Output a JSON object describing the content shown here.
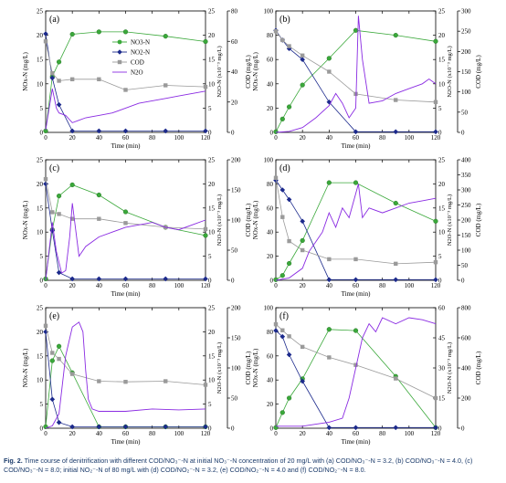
{
  "caption": {
    "label": "Fig. 2.",
    "text": "Time course of denitrification with different COD/NO₃⁻-N at initial NO₃⁻-N concentration of 20 mg/L with (a) COD/NO₃⁻-N = 3.2, (b) COD/NO₃⁻-N = 4.0, (c) COD/NO₃⁻-N = 8.0; initial NO₂⁻-N of 80 mg/L with (d) COD/NO₂⁻-N = 3.2, (e) COD/NO₂⁻-N = 4.0 and (f) COD/NO₂⁻-N = 8.0."
  },
  "colors": {
    "nox_green": "#3aa83a",
    "no2_blue": "#1c2a8c",
    "cod_gray": "#9a9a9a",
    "n2o_purple": "#8a2be2"
  },
  "legend_labels": {
    "a": [
      "NO3-N",
      "NO2-N",
      "COD",
      "N2O"
    ],
    "b": []
  },
  "chart_data": [
    {
      "panel": "(a)",
      "type": "line",
      "xlabel": "Time (min)",
      "ylabel_left": "NOx-N (mg/L)",
      "ylabel_right1": "N2O-N (x10⁻³ mg/L)",
      "ylabel_right2": "COD (mg/L)",
      "xlim": [
        0,
        120
      ],
      "xticks": [
        0,
        20,
        40,
        60,
        80,
        100,
        120
      ],
      "left": {
        "lim": [
          0,
          25
        ],
        "ticks": [
          0,
          5,
          10,
          15,
          20,
          25
        ]
      },
      "right1": {
        "lim": [
          0,
          25
        ],
        "ticks": [
          0,
          5,
          10,
          15,
          20,
          25
        ]
      },
      "right2": {
        "lim": [
          0,
          80
        ],
        "ticks": [
          0,
          20,
          40,
          60,
          80
        ]
      },
      "series": [
        {
          "name": "NO3-N",
          "axis": "left",
          "x": [
            0,
            5,
            10,
            20,
            40,
            60,
            90,
            120
          ],
          "y": [
            0.3,
            11.5,
            14.5,
            20.2,
            20.7,
            20.7,
            19.8,
            18.7
          ]
        },
        {
          "name": "NO2-N",
          "axis": "left",
          "x": [
            0,
            5,
            10,
            20,
            40,
            60,
            90,
            120
          ],
          "y": [
            20.3,
            11.2,
            5.7,
            0.3,
            0.3,
            0.3,
            0.3,
            0.3
          ]
        },
        {
          "name": "COD",
          "axis": "right2",
          "x": [
            0,
            5,
            10,
            20,
            40,
            60,
            90,
            120
          ],
          "y": [
            60,
            39,
            34,
            35,
            35,
            28,
            31,
            30
          ]
        },
        {
          "name": "N2O",
          "axis": "right1",
          "x": [
            0,
            5,
            8,
            10,
            15,
            20,
            25,
            30,
            40,
            50,
            60,
            70,
            80,
            90,
            100,
            110,
            120
          ],
          "y": [
            0.5,
            9,
            5,
            4,
            3.5,
            2,
            2.5,
            3,
            3.5,
            4,
            5,
            6,
            6.5,
            7,
            7.5,
            8,
            8.5
          ]
        }
      ]
    },
    {
      "panel": "(b)",
      "type": "line",
      "xlabel": "Time (min)",
      "ylabel_left": "NOx-N (mg/L)",
      "ylabel_right1": "N2O-N (x10⁻³ mg/L)",
      "ylabel_right2": "COD (mg/L)",
      "xlim": [
        0,
        120
      ],
      "xticks": [
        0,
        20,
        40,
        60,
        80,
        100,
        120
      ],
      "left": {
        "lim": [
          0,
          100
        ],
        "ticks": [
          0,
          20,
          40,
          60,
          80,
          100
        ]
      },
      "right1": {
        "lim": [
          0,
          25
        ],
        "ticks": [
          0,
          5,
          10,
          15,
          20,
          25
        ]
      },
      "right2": {
        "lim": [
          0,
          300
        ],
        "ticks": [
          0,
          50,
          100,
          150,
          200,
          250,
          300
        ]
      },
      "series": [
        {
          "name": "NO3-N",
          "axis": "left",
          "x": [
            0,
            5,
            10,
            20,
            40,
            60,
            90,
            120
          ],
          "y": [
            0.5,
            11,
            21,
            39,
            61,
            84,
            80,
            75
          ]
        },
        {
          "name": "NO2-N",
          "axis": "left",
          "x": [
            0,
            5,
            10,
            20,
            40,
            60,
            90,
            120
          ],
          "y": [
            84,
            76,
            69,
            60,
            25,
            0.5,
            0.5,
            0.5
          ]
        },
        {
          "name": "COD",
          "axis": "right2",
          "x": [
            0,
            5,
            10,
            20,
            40,
            60,
            90,
            120
          ],
          "y": [
            250,
            228,
            213,
            190,
            150,
            95,
            80,
            75
          ]
        },
        {
          "name": "N2O",
          "axis": "right1",
          "x": [
            0,
            10,
            20,
            30,
            40,
            45,
            50,
            55,
            60,
            62,
            65,
            70,
            80,
            90,
            100,
            110,
            115,
            120
          ],
          "y": [
            0,
            0.2,
            1,
            3,
            5.5,
            8,
            6,
            3,
            5,
            24,
            15,
            6,
            6.5,
            8,
            9,
            10,
            11,
            10
          ]
        }
      ]
    },
    {
      "panel": "(c)",
      "type": "line",
      "xlabel": "Time (min)",
      "ylabel_left": "NOx-N (mg/L)",
      "ylabel_right1": "N2O-N (x10⁻³ mg/L)",
      "ylabel_right2": "COD (mg/L)",
      "xlim": [
        0,
        120
      ],
      "xticks": [
        0,
        20,
        40,
        60,
        80,
        100,
        120
      ],
      "left": {
        "lim": [
          0,
          25
        ],
        "ticks": [
          0,
          5,
          10,
          15,
          20,
          25
        ]
      },
      "right1": {
        "lim": [
          0,
          25
        ],
        "ticks": [
          0,
          5,
          10,
          15,
          20,
          25
        ]
      },
      "right2": {
        "lim": [
          0,
          200
        ],
        "ticks": [
          0,
          50,
          100,
          150,
          200
        ]
      },
      "series": [
        {
          "name": "NO3-N",
          "axis": "left",
          "x": [
            0,
            5,
            10,
            20,
            40,
            60,
            90,
            120
          ],
          "y": [
            0.3,
            10.5,
            17.5,
            19.8,
            17.7,
            14.2,
            11.0,
            9.3
          ]
        },
        {
          "name": "NO2-N",
          "axis": "left",
          "x": [
            0,
            5,
            10,
            20,
            40,
            60,
            90,
            120
          ],
          "y": [
            20,
            10.3,
            1.6,
            0.3,
            0.3,
            0.3,
            0.3,
            0.3
          ]
        },
        {
          "name": "COD",
          "axis": "right2",
          "x": [
            0,
            5,
            10,
            20,
            40,
            60,
            90,
            120
          ],
          "y": [
            168,
            113,
            110,
            102,
            102,
            95,
            88,
            85
          ]
        },
        {
          "name": "N2O",
          "axis": "right1",
          "x": [
            0,
            5,
            8,
            12,
            15,
            18,
            20,
            25,
            30,
            40,
            50,
            60,
            70,
            80,
            90,
            100,
            110,
            120
          ],
          "y": [
            0,
            12,
            6,
            1.5,
            2,
            9,
            16,
            5,
            7,
            9,
            10,
            11,
            11.5,
            12,
            11,
            10.5,
            11.5,
            12.5
          ]
        }
      ]
    },
    {
      "panel": "(d)",
      "type": "line",
      "xlabel": "Time (min)",
      "ylabel_left": "NOx-N (mg/L)",
      "ylabel_right1": "N2O-N (x10⁻³ mg/L)",
      "ylabel_right2": "COD (mg/L)",
      "xlim": [
        0,
        120
      ],
      "xticks": [
        0,
        20,
        40,
        60,
        80,
        100,
        120
      ],
      "left": {
        "lim": [
          0,
          100
        ],
        "ticks": [
          0,
          20,
          40,
          60,
          80,
          100
        ]
      },
      "right1": {
        "lim": [
          0,
          25
        ],
        "ticks": [
          0,
          5,
          10,
          15,
          20,
          25
        ]
      },
      "right2": {
        "lim": [
          0,
          400
        ],
        "ticks": [
          0,
          50,
          100,
          150,
          200,
          250,
          300,
          350,
          400
        ]
      },
      "series": [
        {
          "name": "NO3-N",
          "axis": "left",
          "x": [
            0,
            5,
            10,
            20,
            40,
            60,
            90,
            120
          ],
          "y": [
            0.5,
            4,
            14,
            33,
            81,
            81,
            64,
            49
          ]
        },
        {
          "name": "NO2-N",
          "axis": "left",
          "x": [
            0,
            5,
            10,
            20,
            40,
            60,
            90,
            120
          ],
          "y": [
            83,
            75,
            67,
            49,
            0.5,
            0.5,
            0.5,
            0.5
          ]
        },
        {
          "name": "COD",
          "axis": "right2",
          "x": [
            0,
            5,
            10,
            20,
            40,
            60,
            90,
            120
          ],
          "y": [
            340,
            210,
            130,
            100,
            70,
            70,
            55,
            60
          ]
        },
        {
          "name": "N2O",
          "axis": "right1",
          "x": [
            0,
            10,
            20,
            25,
            30,
            35,
            40,
            45,
            50,
            55,
            60,
            62,
            65,
            70,
            80,
            90,
            100,
            110,
            120
          ],
          "y": [
            0,
            0.5,
            2.5,
            6,
            8,
            10,
            14,
            11,
            15,
            13,
            18,
            20,
            13,
            15,
            14,
            15,
            16,
            16.5,
            17
          ]
        }
      ]
    },
    {
      "panel": "(e)",
      "type": "line",
      "xlabel": "Time (min)",
      "ylabel_left": "NOx-N (mg/L)",
      "ylabel_right1": "N2O-N (x10⁻³ mg/L)",
      "ylabel_right2": "COD (mg/L)",
      "xlim": [
        0,
        120
      ],
      "xticks": [
        0,
        20,
        40,
        60,
        80,
        100,
        120
      ],
      "left": {
        "lim": [
          0,
          25
        ],
        "ticks": [
          0,
          5,
          10,
          15,
          20,
          25
        ]
      },
      "right1": {
        "lim": [
          0,
          25
        ],
        "ticks": [
          0,
          5,
          10,
          15,
          20,
          25
        ]
      },
      "right2": {
        "lim": [
          0,
          200
        ],
        "ticks": [
          0,
          50,
          100,
          150,
          200
        ]
      },
      "series": [
        {
          "name": "NO3-N",
          "axis": "left",
          "x": [
            0,
            5,
            10,
            20,
            40,
            60,
            90,
            120
          ],
          "y": [
            0.3,
            14,
            17,
            11.5,
            0.3,
            0.3,
            0.3,
            0.3
          ]
        },
        {
          "name": "NO2-N",
          "axis": "left",
          "x": [
            0,
            5,
            10,
            20,
            40,
            60,
            90,
            120
          ],
          "y": [
            20,
            6,
            1.2,
            0.3,
            0.3,
            0.3,
            0.3,
            0.3
          ]
        },
        {
          "name": "COD",
          "axis": "right2",
          "x": [
            0,
            5,
            10,
            20,
            40,
            60,
            90,
            120
          ],
          "y": [
            170,
            125,
            115,
            90,
            78,
            77,
            78,
            72
          ]
        },
        {
          "name": "N2O",
          "axis": "right1",
          "x": [
            0,
            5,
            10,
            15,
            20,
            25,
            28,
            30,
            32,
            35,
            40,
            60,
            80,
            100,
            120
          ],
          "y": [
            0,
            0.5,
            3,
            15,
            21,
            22,
            20,
            12,
            6,
            4,
            3.5,
            3.5,
            4,
            3.8,
            4
          ]
        }
      ]
    },
    {
      "panel": "(f)",
      "type": "line",
      "xlabel": "Time (min)",
      "ylabel_left": "NOx-N (mg/L)",
      "ylabel_right1": "N2O-N (x10⁻³ mg/L)",
      "ylabel_right2": "COD (mg/L)",
      "xlim": [
        0,
        120
      ],
      "xticks": [
        0,
        20,
        40,
        60,
        80,
        100,
        120
      ],
      "left": {
        "lim": [
          0,
          100
        ],
        "ticks": [
          0,
          20,
          40,
          60,
          80,
          100
        ]
      },
      "right1": {
        "lim": [
          0,
          60
        ],
        "ticks": [
          0,
          15,
          30,
          45,
          60
        ]
      },
      "right2": {
        "lim": [
          0,
          800
        ],
        "ticks": [
          0,
          200,
          400,
          600,
          800
        ]
      },
      "series": [
        {
          "name": "NO3-N",
          "axis": "left",
          "x": [
            0,
            5,
            10,
            20,
            40,
            60,
            90,
            120
          ],
          "y": [
            0.5,
            13,
            25,
            41,
            82,
            81,
            43,
            0.5
          ]
        },
        {
          "name": "NO2-N",
          "axis": "left",
          "x": [
            0,
            5,
            10,
            20,
            40,
            60,
            90,
            120
          ],
          "y": [
            81,
            76,
            61,
            39,
            0.5,
            0.5,
            0.5,
            0.5
          ]
        },
        {
          "name": "COD",
          "axis": "right2",
          "x": [
            0,
            5,
            10,
            20,
            40,
            60,
            90,
            120
          ],
          "y": [
            690,
            650,
            610,
            540,
            470,
            420,
            330,
            200
          ]
        },
        {
          "name": "N2O",
          "axis": "right1",
          "x": [
            0,
            20,
            30,
            40,
            50,
            55,
            60,
            65,
            70,
            75,
            80,
            90,
            100,
            110,
            120
          ],
          "y": [
            1,
            1,
            2,
            3,
            5,
            15,
            30,
            45,
            52,
            48,
            55,
            52,
            55,
            54,
            52
          ]
        }
      ]
    }
  ]
}
